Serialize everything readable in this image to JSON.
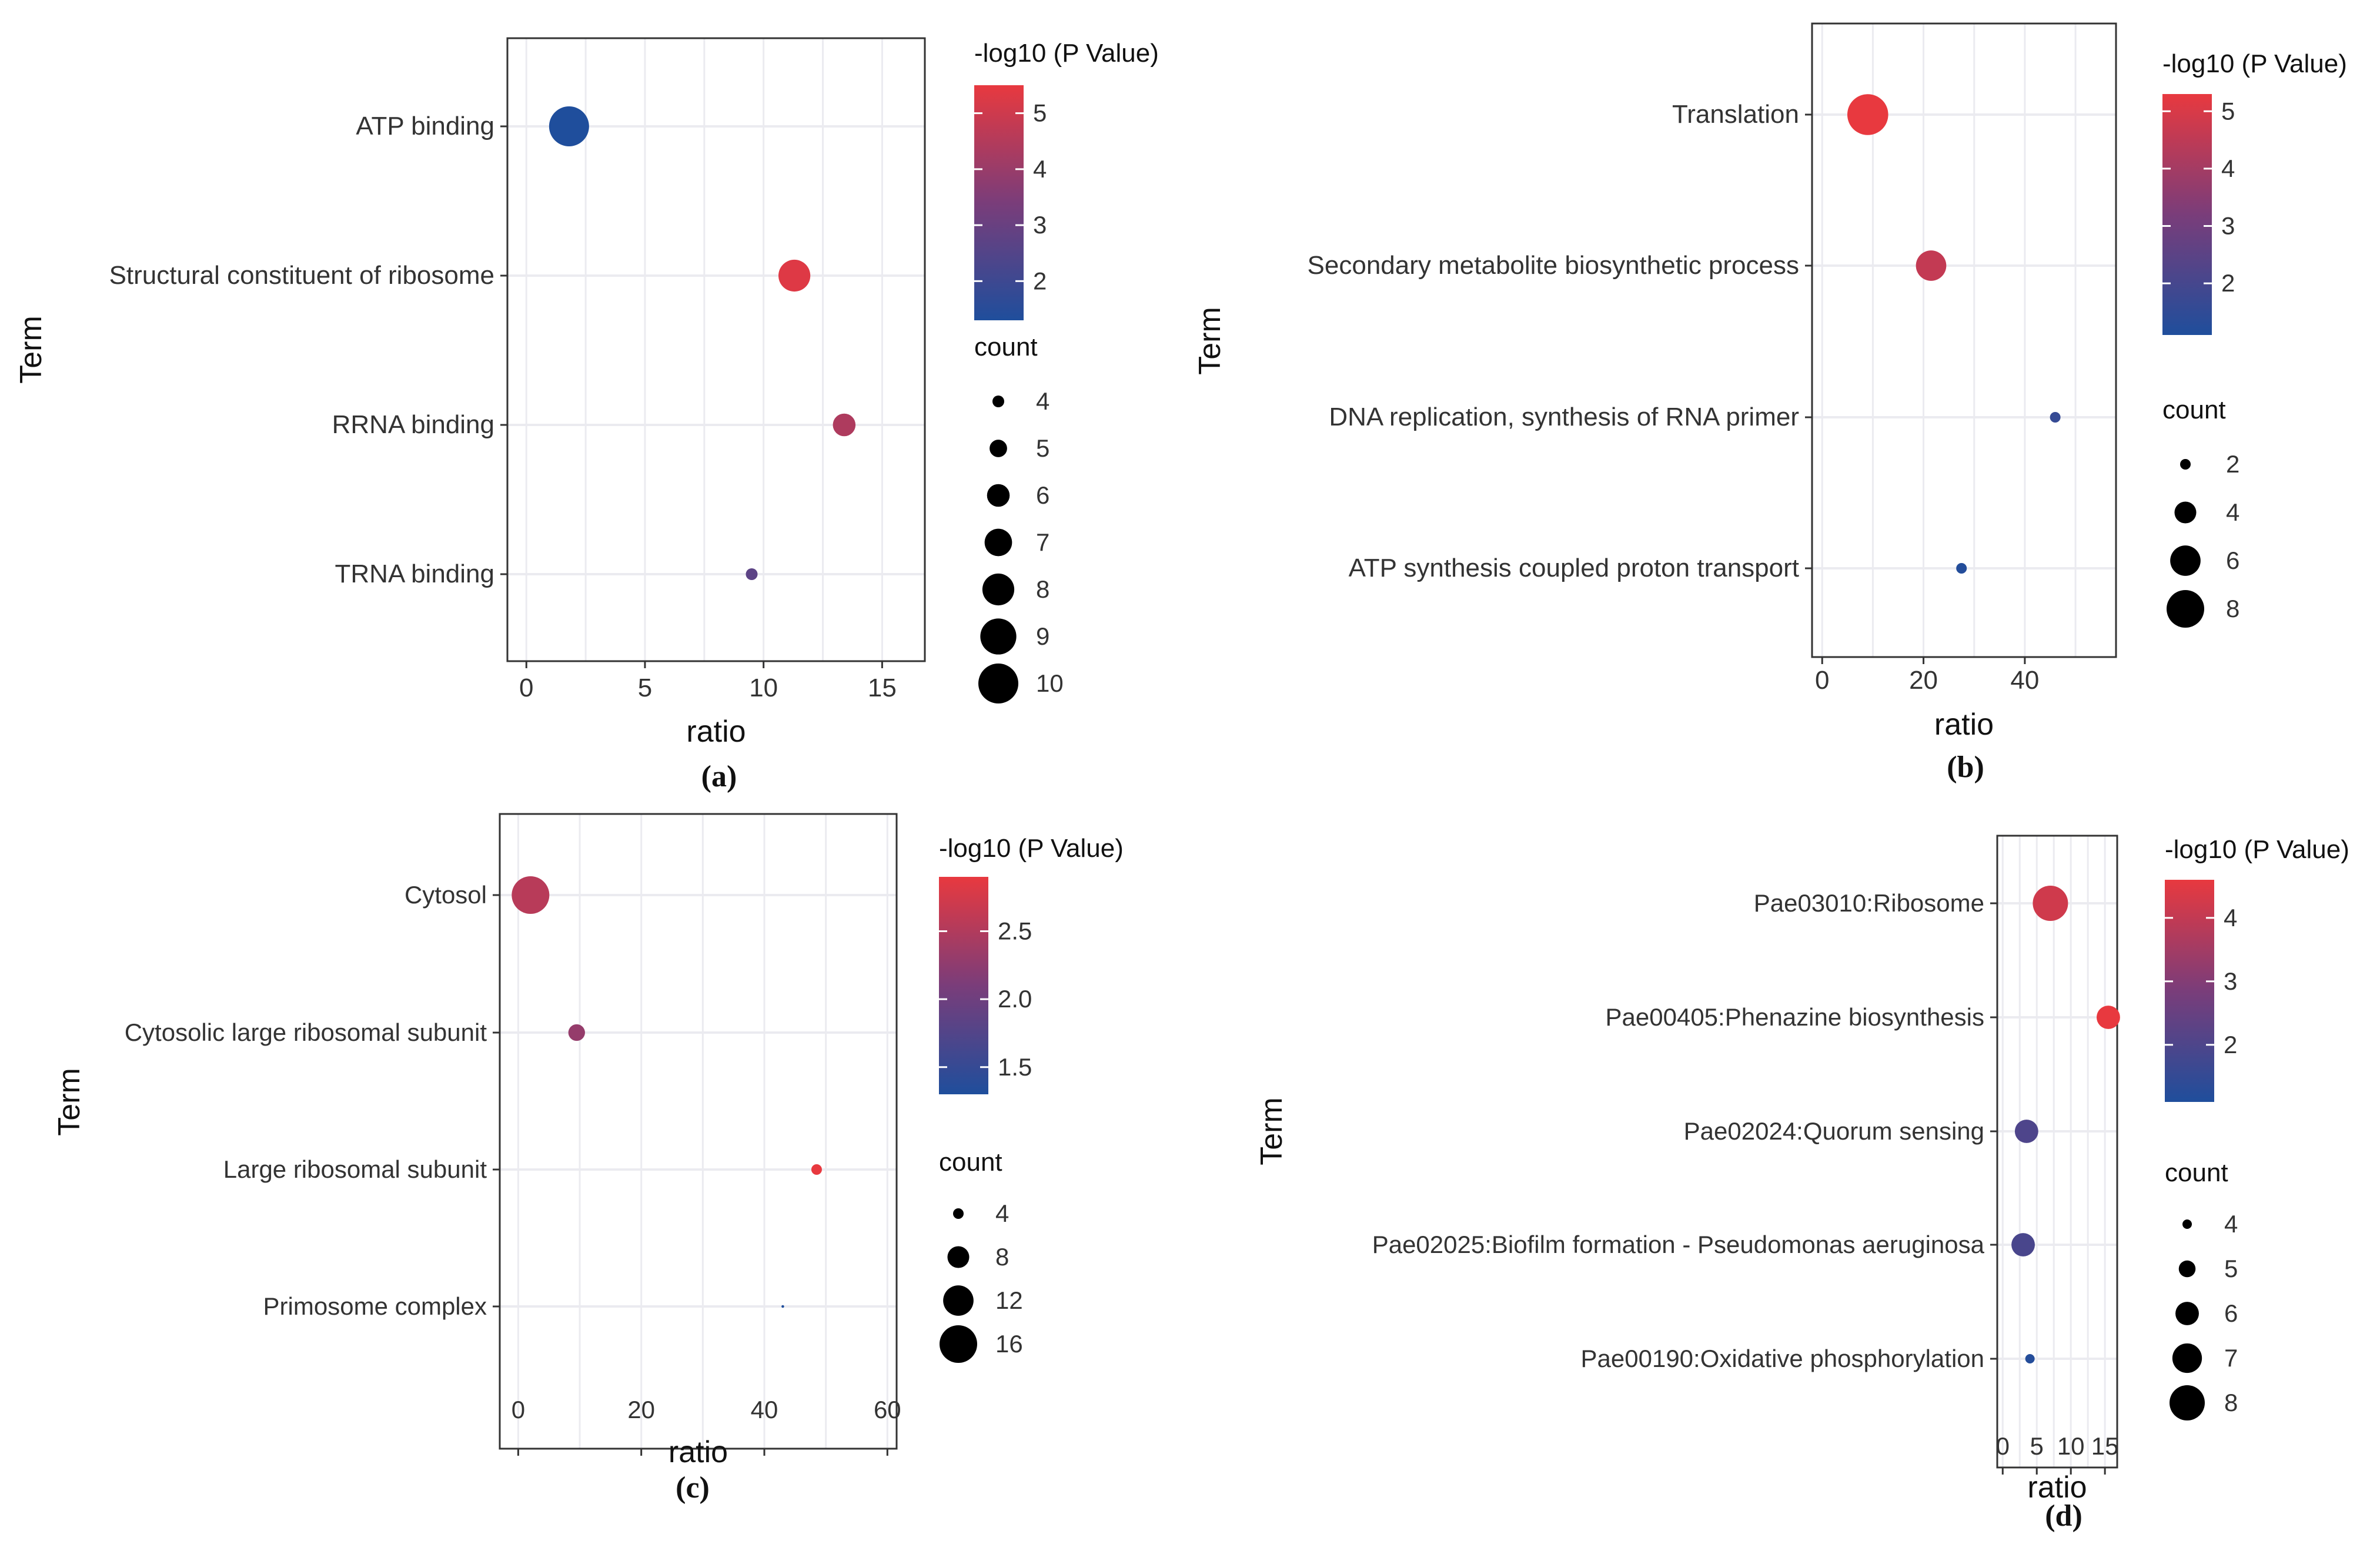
{
  "figure": {
    "panels": [
      {
        "id": "a",
        "label": "(a)"
      },
      {
        "id": "b",
        "label": "(b)"
      },
      {
        "id": "c",
        "label": "(c)"
      },
      {
        "id": "d",
        "label": "(d)"
      }
    ]
  },
  "chart_data": [
    {
      "panel": "(a)",
      "type": "scatter",
      "xlabel": "ratio",
      "ylabel": "Term",
      "xlim": [
        -0.8,
        16.8
      ],
      "xticks": [
        "0",
        "5",
        "10",
        "15"
      ],
      "grid": true,
      "legend_position": "right",
      "categories": [
        "ATP binding",
        "Structural constituent of ribosome",
        "RRNA binding",
        "TRNA binding"
      ],
      "points": [
        {
          "term": "ATP binding",
          "ratio": 1.8,
          "pvalue": 1.3,
          "count": 10
        },
        {
          "term": "Structural constituent of ribosome",
          "ratio": 11.3,
          "pvalue": 5.3,
          "count": 8
        },
        {
          "term": "RRNA binding",
          "ratio": 13.4,
          "pvalue": 4.4,
          "count": 6
        },
        {
          "term": "TRNA binding",
          "ratio": 9.5,
          "pvalue": 2.7,
          "count": 4
        }
      ],
      "color_legend": {
        "title": "-log10 (P Value)",
        "min": 1.3,
        "max": 5.5,
        "ticks": [
          "5",
          "4",
          "3",
          "2"
        ],
        "tick_values": [
          5,
          4,
          3,
          2
        ]
      },
      "size_legend": {
        "title": "count",
        "values": [
          4,
          5,
          6,
          7,
          8,
          9,
          10
        ]
      }
    },
    {
      "panel": "(b)",
      "type": "scatter",
      "xlabel": "ratio",
      "ylabel": "Term",
      "xlim": [
        -2,
        58
      ],
      "xticks": [
        "0",
        "20",
        "40"
      ],
      "grid": true,
      "legend_position": "right",
      "categories": [
        "Translation",
        "Secondary metabolite biosynthetic process",
        "DNA replication, synthesis of RNA primer",
        "ATP synthesis coupled proton transport"
      ],
      "points": [
        {
          "term": "Translation",
          "ratio": 9,
          "pvalue": 5.3,
          "count": 9
        },
        {
          "term": "Secondary metabolite biosynthetic process",
          "ratio": 21.5,
          "pvalue": 4.6,
          "count": 6
        },
        {
          "term": "DNA replication, synthesis of RNA primer",
          "ratio": 46,
          "pvalue": 1.6,
          "count": 2
        },
        {
          "term": "ATP synthesis coupled proton transport",
          "ratio": 27.5,
          "pvalue": 1.2,
          "count": 2
        }
      ],
      "color_legend": {
        "title": "-log10 (P Value)",
        "min": 1.1,
        "max": 5.3,
        "ticks": [
          "5",
          "4",
          "3",
          "2"
        ],
        "tick_values": [
          5,
          4,
          3,
          2
        ]
      },
      "size_legend": {
        "title": "count",
        "values": [
          2,
          4,
          6,
          8
        ]
      }
    },
    {
      "panel": "(c)",
      "type": "scatter",
      "xlabel": "ratio",
      "ylabel": "Term",
      "xlim": [
        -3,
        61.5
      ],
      "xticks": [
        "0",
        "20",
        "40",
        "60"
      ],
      "grid": true,
      "legend_position": "right",
      "categories": [
        "Cytosol",
        "Cytosolic large ribosomal subunit",
        "Large ribosomal subunit",
        "Primosome complex"
      ],
      "points": [
        {
          "term": "Cytosol",
          "ratio": 2,
          "pvalue": 2.55,
          "count": 16
        },
        {
          "term": "Cytosolic large ribosomal subunit",
          "ratio": 9.5,
          "pvalue": 2.3,
          "count": 6
        },
        {
          "term": "Large ribosomal subunit",
          "ratio": 48.5,
          "pvalue": 2.9,
          "count": 4
        },
        {
          "term": "Primosome complex",
          "ratio": 43,
          "pvalue": 1.3,
          "count": 2
        }
      ],
      "color_legend": {
        "title": "-log10 (P Value)",
        "min": 1.3,
        "max": 2.9,
        "ticks": [
          "2.5",
          "2.0",
          "1.5"
        ],
        "tick_values": [
          2.5,
          2.0,
          1.5
        ]
      },
      "size_legend": {
        "title": "count",
        "values": [
          4,
          8,
          12,
          16
        ]
      }
    },
    {
      "panel": "(d)",
      "type": "scatter",
      "xlabel": "ratio",
      "ylabel": "Term",
      "xlim": [
        -0.8,
        16.8
      ],
      "xticks": [
        "0",
        "5",
        "10",
        "15"
      ],
      "grid": true,
      "legend_position": "right",
      "categories": [
        "Pae03010:Ribosome",
        "Pae00405:Phenazine biosynthesis",
        "Pae02024:Quorum sensing",
        "Pae02025:Biofilm formation - Pseudomonas aeruginosa",
        "Pae00190:Oxidative phosphorylation"
      ],
      "points": [
        {
          "term": "Pae03010:Ribosome",
          "ratio": 7,
          "pvalue": 4.2,
          "count": 8
        },
        {
          "term": "Pae00405:Phenazine biosynthesis",
          "ratio": 15.5,
          "pvalue": 4.6,
          "count": 6
        },
        {
          "term": "Pae02024:Quorum sensing",
          "ratio": 3.5,
          "pvalue": 2.0,
          "count": 6
        },
        {
          "term": "Pae02025:Biofilm formation - Pseudomonas aeruginosa",
          "ratio": 3,
          "pvalue": 1.9,
          "count": 6
        },
        {
          "term": "Pae00190:Oxidative phosphorylation",
          "ratio": 4,
          "pvalue": 1.2,
          "count": 4
        }
      ],
      "color_legend": {
        "title": "-log10 (P Value)",
        "min": 1.1,
        "max": 4.6,
        "ticks": [
          "4",
          "3",
          "2"
        ],
        "tick_values": [
          4,
          3,
          2
        ]
      },
      "size_legend": {
        "title": "count",
        "values": [
          4,
          5,
          6,
          7,
          8
        ]
      }
    }
  ],
  "colors": {
    "low": "#1f4e9c",
    "mid": "#7a3d7a",
    "high": "#e8393f",
    "panel_border": "#333333",
    "grid": "#ebebf0",
    "text": "#333333",
    "caption": "#111111"
  }
}
